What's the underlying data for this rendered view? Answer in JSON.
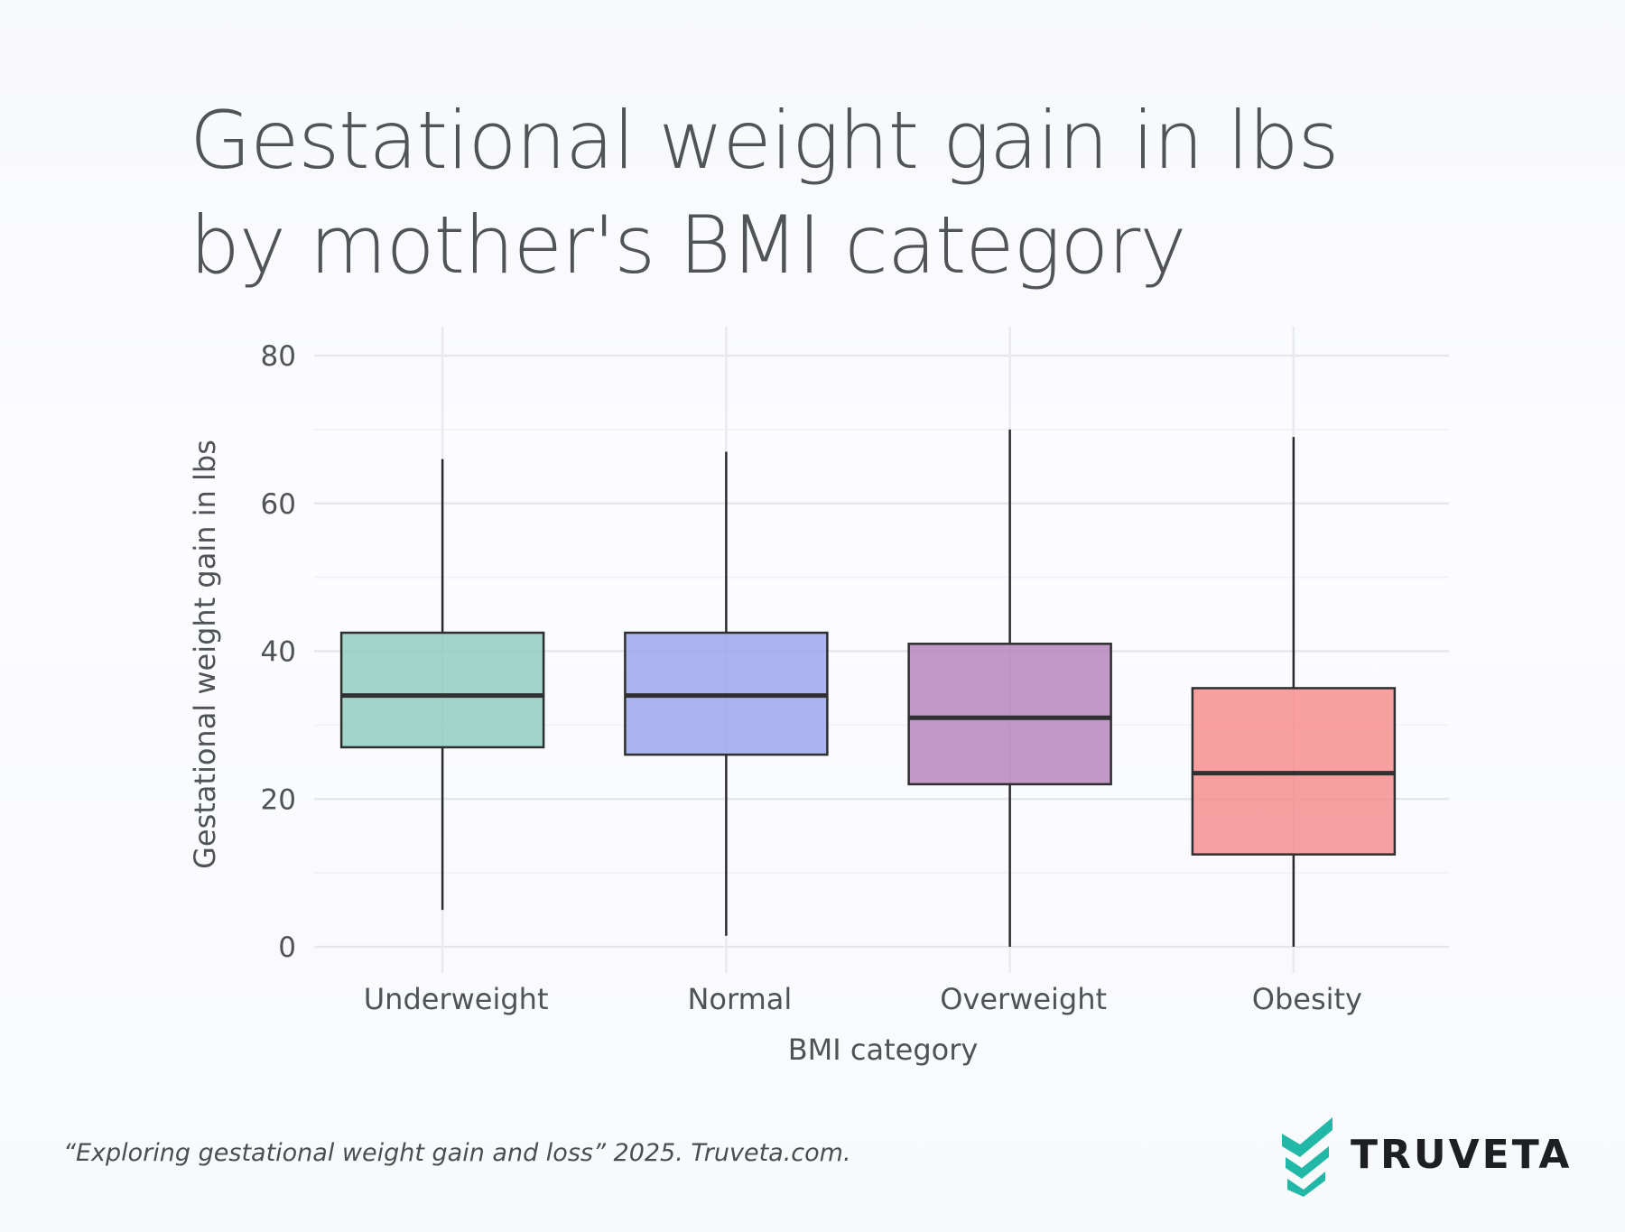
{
  "title": {
    "line1": "Gestational weight gain in lbs",
    "line2": "by mother's BMI category"
  },
  "source_note": "“Exploring gestational weight gain and loss” 2025. Truveta.com.",
  "brand": {
    "name": "TRUVETA",
    "logo_icon": "truveta-chevron-logo-icon",
    "color": "#22b8a8"
  },
  "chart_data": {
    "type": "box",
    "title": "Gestational weight gain in lbs by mother's BMI category",
    "xlabel": "BMI category",
    "ylabel": "Gestational weight gain in lbs",
    "ylim": [
      -1,
      84
    ],
    "yticks": [
      0,
      20,
      40,
      60,
      80
    ],
    "yticks_minor": [
      10,
      30,
      50,
      70
    ],
    "grid": true,
    "categories": [
      "Underweight",
      "Normal",
      "Overweight",
      "Obesity"
    ],
    "boxes": [
      {
        "name": "Underweight",
        "whisker_low": 5,
        "q1": 27,
        "median": 34,
        "q3": 42.5,
        "whisker_high": 66,
        "color": "#8fcabf"
      },
      {
        "name": "Normal",
        "whisker_low": 1.5,
        "q1": 26,
        "median": 34,
        "q3": 42.5,
        "whisker_high": 67,
        "color": "#97a4ea"
      },
      {
        "name": "Overweight",
        "whisker_low": 0,
        "q1": 22,
        "median": 31,
        "q3": 41,
        "whisker_high": 70,
        "color": "#b583ba"
      },
      {
        "name": "Obesity",
        "whisker_low": 0,
        "q1": 12.5,
        "median": 23.5,
        "q3": 35,
        "whisker_high": 69,
        "color": "#f78a8b"
      }
    ]
  }
}
